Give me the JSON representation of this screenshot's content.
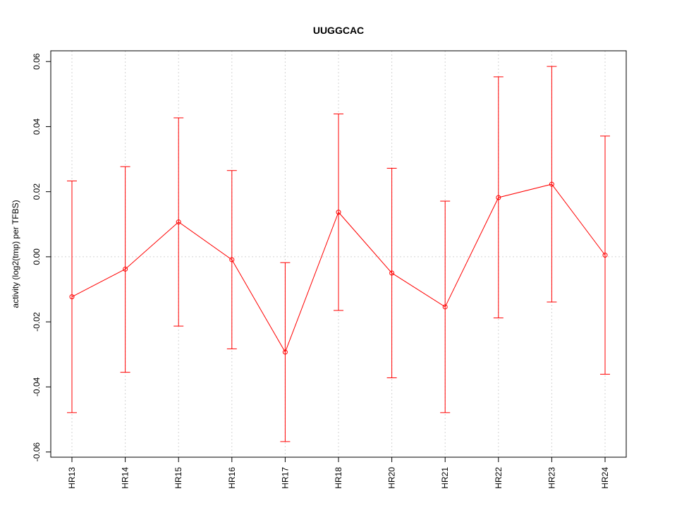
{
  "chart_data": {
    "type": "line",
    "title": "UUGGCAC",
    "xlabel": "",
    "ylabel": "activity (log2(tmp) per TFBS)",
    "categories": [
      "HR13",
      "HR14",
      "HR15",
      "HR16",
      "HR17",
      "HR18",
      "HR20",
      "HR21",
      "HR22",
      "HR23",
      "HR24"
    ],
    "series": [
      {
        "values": [
          -0.0123,
          -0.0038,
          0.0107,
          -0.0009,
          -0.0293,
          0.0137,
          -0.005,
          -0.0154,
          0.0182,
          0.0223,
          0.0005
        ],
        "upper": [
          0.0233,
          0.0277,
          0.0427,
          0.0265,
          -0.0018,
          0.0439,
          0.0272,
          0.0171,
          0.0553,
          0.0585,
          0.0371
        ],
        "lower": [
          -0.0479,
          -0.0355,
          -0.0213,
          -0.0283,
          -0.0568,
          -0.0165,
          -0.0372,
          -0.0479,
          -0.0188,
          -0.0139,
          -0.0361
        ]
      }
    ],
    "ylim": [
      -0.0616,
      0.0633
    ],
    "yticks": [
      -0.06,
      -0.04,
      -0.02,
      0.0,
      0.02,
      0.04,
      0.06
    ],
    "ytick_labels": [
      "-0.06",
      "-0.04",
      "-0.02",
      "0.00",
      "0.02",
      "0.04",
      "0.06"
    ],
    "grid": true,
    "colors": {
      "series": "#ff0000",
      "grid": "#d3d3d3",
      "axis": "#000000"
    }
  }
}
